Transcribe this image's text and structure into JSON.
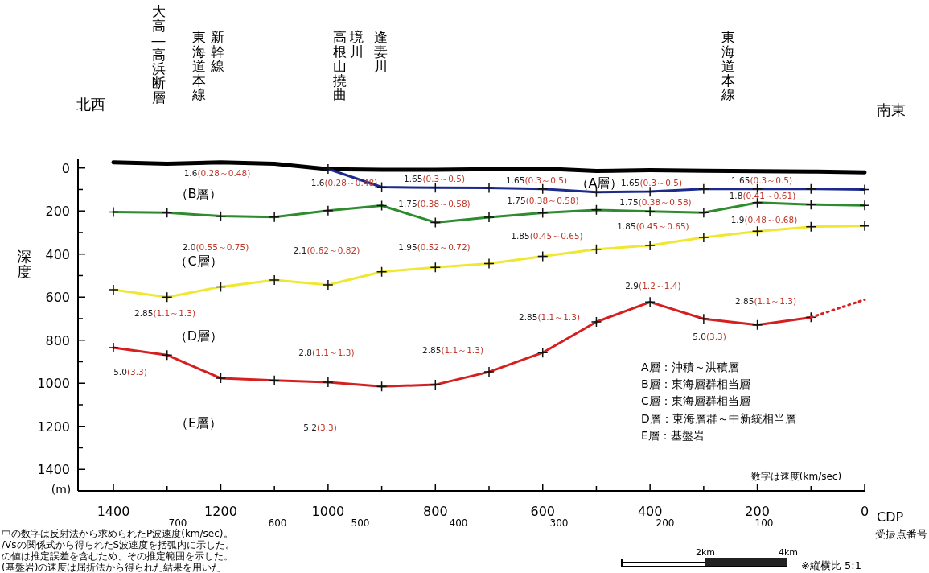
{
  "chart_data": {
    "type": "line",
    "xlabel": "CDP",
    "ylabel": "深度",
    "grid": false,
    "marker": "cross",
    "line_style": "solid",
    "xlim": [
      1466,
      0
    ],
    "ylim": [
      1500,
      -40
    ],
    "xticks": [
      1400,
      {
        "value": 1300,
        "label": null
      },
      1200,
      {
        "value": 1100,
        "label": null
      },
      1000,
      {
        "value": 900,
        "label": null
      },
      800,
      {
        "value": 700,
        "label": null
      },
      600,
      {
        "value": 500,
        "label": null
      },
      400,
      {
        "value": 300,
        "label": null
      },
      200,
      {
        "value": 100,
        "label": null
      },
      0
    ],
    "yticks": [
      0,
      {
        "value": 100,
        "label": null
      },
      200,
      {
        "value": 300,
        "label": null
      },
      400,
      {
        "value": 500,
        "label": null
      },
      600,
      {
        "value": 700,
        "label": null
      },
      800,
      {
        "value": 900,
        "label": null
      },
      1000,
      {
        "value": 1100,
        "label": null
      },
      1200,
      {
        "value": 1300,
        "label": null
      },
      1400
    ],
    "x": [
      1400,
      1300,
      1200,
      1100,
      1000,
      900,
      800,
      700,
      600,
      500,
      400,
      300,
      200,
      100,
      0
    ],
    "series": [
      {
        "color": "#000000",
        "marker": "none",
        "values": [
          -26,
          -19,
          -26,
          -19,
          6,
          9,
          9,
          6,
          3,
          14,
          11,
          13,
          15,
          17,
          21
        ]
      },
      {
        "color": "#1c2a8c",
        "values": [
          null,
          null,
          null,
          null,
          5,
          89,
          92,
          93,
          97,
          112,
          110,
          97,
          97,
          97,
          100
        ]
      },
      {
        "color": "#2e8b2e",
        "values": [
          205,
          208,
          224,
          228,
          198,
          175,
          253,
          229,
          209,
          195,
          202,
          208,
          161,
          170,
          174
        ]
      },
      {
        "color": "#f0e830",
        "values": [
          566,
          600,
          552,
          521,
          543,
          482,
          462,
          444,
          410,
          378,
          360,
          323,
          294,
          273,
          269
        ]
      },
      {
        "color": "#d42020",
        "values": [
          835,
          869,
          977,
          987,
          995,
          1015,
          1007,
          947,
          858,
          715,
          623,
          701,
          729,
          694,
          null
        ]
      },
      {
        "color": "#d42020",
        "marker": "none",
        "line_style": "dotted",
        "x": [
          100,
          0
        ],
        "values": [
          694,
          612
        ]
      }
    ],
    "annotations": [
      "北西",
      "南東",
      "大高―高浜断層",
      "東海道本線",
      "新幹線",
      "高根山撓曲",
      "境川",
      "逢妻川",
      "東海道本線",
      "1.6(0.28～0.48)",
      "1.6(0.28～0.48)",
      "1.65(0.3～0.5)",
      "1.65(0.3～0.5)",
      "（A層）",
      "1.65(0.3～0.5)",
      "1.65(0.3～0.5)",
      "（B層）",
      "1.75(0.38～0.58)",
      "1.75(0.38～0.58)",
      "1.75(0.38～0.58)",
      "1.8(0.41～0.61)",
      "1.9(0.48～0.68)",
      "1.85(0.45～0.65)",
      "1.85(0.45～0.65)",
      "2.0(0.55～0.75)",
      "2.1(0.62～0.82)",
      "1.95(0.52～0.72)",
      "（C層）",
      "2.85(1.1～1.3)",
      "2.9(1.2～1.4)",
      "2.85(1.1～1.3)",
      "2.85(1.1～1.3)",
      "5.0(3.3)",
      "（D層）",
      "2.8(1.1～1.3)",
      "2.85(1.1～1.3)",
      "5.0(3.3)",
      "（E層）",
      "5.2(3.3)",
      "A層：沖積～洪積層",
      "B層：東海層群相当層",
      "C層：東海層群相当層",
      "D層：東海層群～中新統相当層",
      "E層：基盤岩",
      "数字は速度(km/sec)",
      "(m)",
      "2km",
      "4km",
      "※縦横比 5:1",
      "700",
      "600",
      "500",
      "400",
      "300",
      "200",
      "100",
      "受振点番号",
      "中の数字は反射法から求められたP波速度(km/sec)。",
      "/Vsの関係式から得られたS波速度を括弧内に示した。",
      "の値は推定誤差を含むため、その推定範囲を示した。",
      "(基盤岩)の速度は屈折法から得られた結果を用いた"
    ]
  }
}
